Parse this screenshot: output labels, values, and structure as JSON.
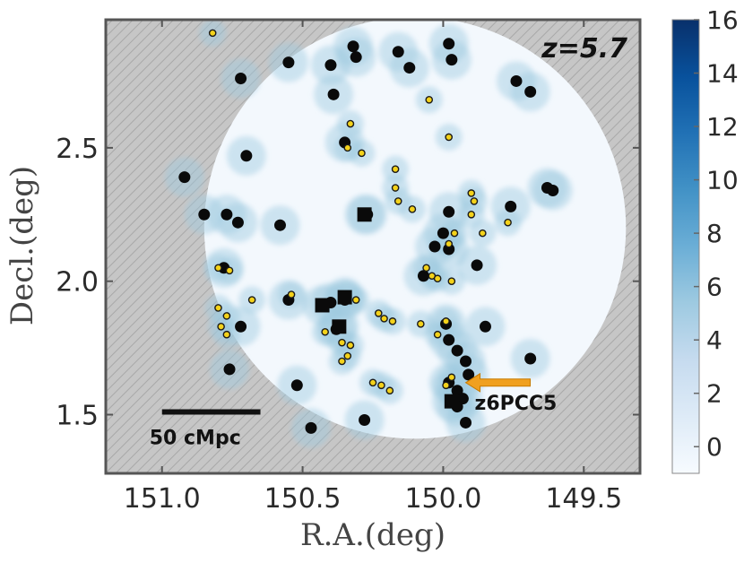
{
  "chart_data": {
    "type": "scatter",
    "annotation_label": "z=5.7",
    "xlabel": "R.A.(deg)",
    "ylabel": "Decl.(deg)",
    "xlim": [
      151.2,
      149.3
    ],
    "ylim": [
      1.28,
      2.98
    ],
    "x_ticks": [
      151.0,
      150.5,
      150.0,
      149.5
    ],
    "x_tick_labels": [
      "151.0",
      "150.5",
      "150.0",
      "149.5"
    ],
    "y_ticks": [
      1.5,
      2.0,
      2.5
    ],
    "y_tick_labels": [
      "1.5",
      "2.0",
      "2.5"
    ],
    "field": {
      "center": [
        150.1,
        2.2
      ],
      "radius_deg": 0.75
    },
    "colorbar": {
      "ticks": [
        0,
        2,
        4,
        6,
        8,
        10,
        12,
        14,
        16
      ],
      "tick_labels": [
        "0",
        "2",
        "4",
        "6",
        "8",
        "10",
        "12",
        "14",
        "16"
      ],
      "range": [
        -1,
        16
      ],
      "colors": [
        "#f7fbff",
        "#deebf7",
        "#c6dbef",
        "#9ecae1",
        "#6baed6",
        "#4292c6",
        "#2171b5",
        "#08519c",
        "#08306b"
      ]
    },
    "scale_bar": {
      "label": "50 cMpc",
      "x_start": 151.0,
      "x_end": 150.65,
      "y": 1.51
    },
    "pointer": {
      "label": "z6PCC5",
      "target": [
        149.92,
        1.62
      ]
    },
    "series": [
      {
        "marker": "black-circle",
        "points": [
          [
            150.32,
            2.88
          ],
          [
            150.55,
            2.82
          ],
          [
            150.4,
            2.81
          ],
          [
            150.31,
            2.84
          ],
          [
            150.16,
            2.86
          ],
          [
            149.98,
            2.89
          ],
          [
            150.12,
            2.8
          ],
          [
            149.97,
            2.83
          ],
          [
            150.72,
            2.76
          ],
          [
            149.74,
            2.75
          ],
          [
            150.39,
            2.7
          ],
          [
            149.69,
            2.71
          ],
          [
            150.35,
            2.52
          ],
          [
            150.7,
            2.47
          ],
          [
            150.92,
            2.39
          ],
          [
            149.61,
            2.34
          ],
          [
            149.63,
            2.35
          ],
          [
            150.85,
            2.25
          ],
          [
            150.77,
            2.25
          ],
          [
            150.73,
            2.22
          ],
          [
            150.58,
            2.21
          ],
          [
            150.27,
            2.25
          ],
          [
            149.98,
            2.26
          ],
          [
            149.76,
            2.28
          ],
          [
            150.0,
            2.18
          ],
          [
            150.03,
            2.13
          ],
          [
            149.98,
            2.12
          ],
          [
            149.88,
            2.06
          ],
          [
            150.78,
            2.05
          ],
          [
            150.07,
            2.02
          ],
          [
            150.55,
            1.93
          ],
          [
            150.4,
            1.92
          ],
          [
            150.35,
            1.93
          ],
          [
            150.38,
            1.82
          ],
          [
            149.99,
            1.84
          ],
          [
            149.85,
            1.83
          ],
          [
            150.72,
            1.83
          ],
          [
            149.98,
            1.78
          ],
          [
            149.95,
            1.74
          ],
          [
            149.92,
            1.7
          ],
          [
            149.91,
            1.65
          ],
          [
            149.69,
            1.71
          ],
          [
            150.76,
            1.67
          ],
          [
            150.52,
            1.61
          ],
          [
            149.98,
            1.62
          ],
          [
            149.95,
            1.59
          ],
          [
            149.93,
            1.56
          ],
          [
            149.95,
            1.53
          ],
          [
            149.92,
            1.47
          ],
          [
            150.28,
            1.48
          ],
          [
            150.47,
            1.45
          ]
        ]
      },
      {
        "marker": "yellow-dot",
        "points": [
          [
            150.82,
            2.93
          ],
          [
            150.05,
            2.68
          ],
          [
            150.33,
            2.59
          ],
          [
            150.34,
            2.5
          ],
          [
            150.29,
            2.48
          ],
          [
            149.98,
            2.54
          ],
          [
            150.17,
            2.42
          ],
          [
            150.17,
            2.35
          ],
          [
            150.16,
            2.3
          ],
          [
            150.11,
            2.27
          ],
          [
            149.9,
            2.33
          ],
          [
            149.89,
            2.3
          ],
          [
            149.9,
            2.25
          ],
          [
            149.77,
            2.22
          ],
          [
            149.86,
            2.18
          ],
          [
            149.96,
            2.18
          ],
          [
            149.98,
            2.14
          ],
          [
            150.06,
            2.05
          ],
          [
            150.04,
            2.02
          ],
          [
            150.02,
            2.01
          ],
          [
            149.97,
            2.0
          ],
          [
            150.76,
            2.04
          ],
          [
            150.8,
            2.05
          ],
          [
            150.68,
            1.93
          ],
          [
            150.54,
            1.95
          ],
          [
            150.34,
            1.95
          ],
          [
            150.31,
            1.93
          ],
          [
            150.8,
            1.9
          ],
          [
            150.77,
            1.87
          ],
          [
            150.79,
            1.83
          ],
          [
            150.77,
            1.8
          ],
          [
            150.42,
            1.81
          ],
          [
            150.36,
            1.77
          ],
          [
            150.33,
            1.76
          ],
          [
            150.34,
            1.72
          ],
          [
            150.36,
            1.7
          ],
          [
            150.23,
            1.88
          ],
          [
            150.21,
            1.86
          ],
          [
            150.18,
            1.85
          ],
          [
            150.08,
            1.84
          ],
          [
            150.22,
            1.61
          ],
          [
            150.25,
            1.62
          ],
          [
            150.19,
            1.59
          ],
          [
            149.99,
            1.85
          ],
          [
            150.02,
            1.8
          ],
          [
            149.97,
            1.64
          ],
          [
            149.99,
            1.61
          ]
        ]
      },
      {
        "marker": "black-square",
        "points": [
          [
            150.28,
            2.25
          ],
          [
            150.43,
            1.91
          ],
          [
            150.35,
            1.94
          ],
          [
            150.37,
            1.83
          ],
          [
            149.97,
            1.55
          ]
        ]
      }
    ]
  }
}
